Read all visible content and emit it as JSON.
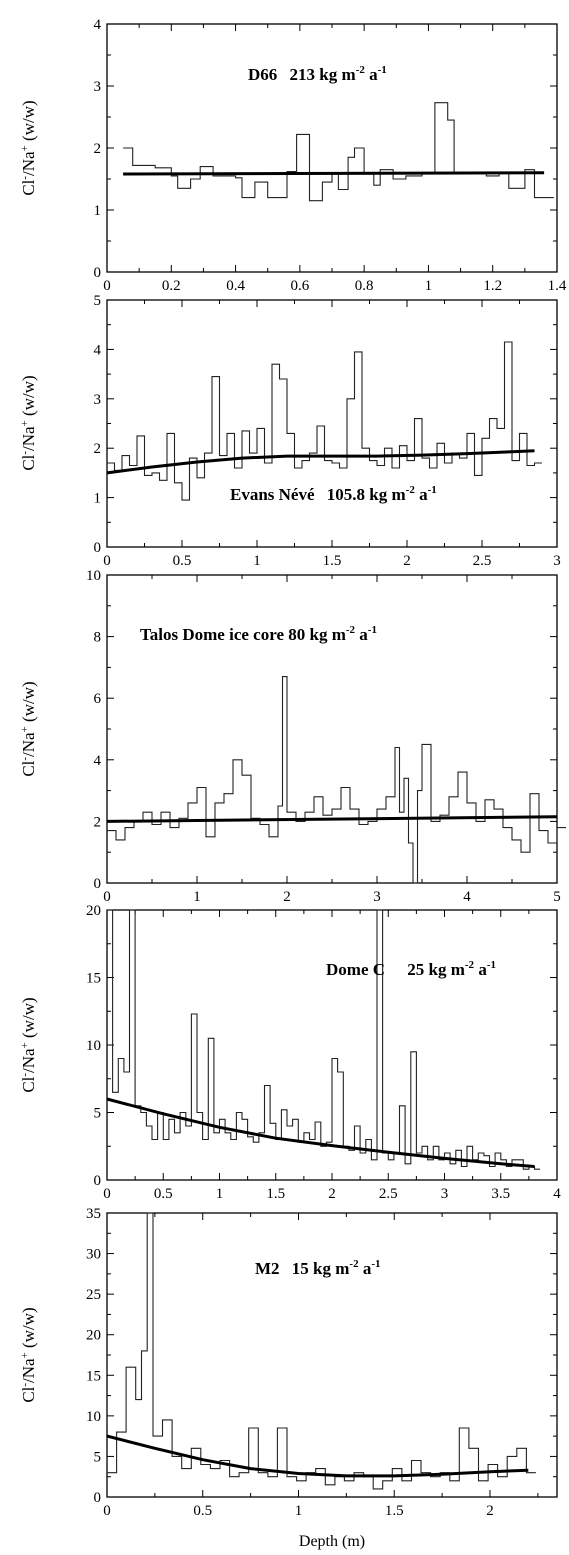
{
  "chart_data": [
    {
      "type": "line",
      "title": "D66",
      "rate": "213",
      "ylabel_parts": [
        "Cl",
        "-",
        "/Na",
        "+",
        " (w/w)"
      ],
      "xlim": [
        0,
        1.4
      ],
      "ylim": [
        0,
        4
      ],
      "xticks": [
        0,
        0.2,
        0.4,
        0.6,
        0.8,
        1,
        1.2,
        1.4
      ],
      "xtick_labels": [
        "0",
        "0.2",
        "0.4",
        "0.6",
        "0.8",
        "1",
        "1.2",
        "1.4"
      ],
      "yticks": [
        0,
        1,
        2,
        3,
        4
      ],
      "ytick_labels": [
        "0",
        "1",
        "2",
        "3",
        "4"
      ],
      "series": [
        {
          "kind": "step",
          "x": [
            0.05,
            0.08,
            0.15,
            0.2,
            0.22,
            0.26,
            0.29,
            0.33,
            0.4,
            0.42,
            0.46,
            0.5,
            0.56,
            0.59,
            0.63,
            0.67,
            0.7,
            0.72,
            0.75,
            0.77,
            0.8,
            0.83,
            0.85,
            0.89,
            0.93,
            0.98,
            1.02,
            1.06,
            1.08,
            1.12,
            1.18,
            1.22,
            1.25,
            1.3,
            1.33,
            1.36
          ],
          "y": [
            2.0,
            1.72,
            1.68,
            1.55,
            1.35,
            1.5,
            1.7,
            1.55,
            1.52,
            1.2,
            1.45,
            1.2,
            1.62,
            2.22,
            1.15,
            1.45,
            1.6,
            1.33,
            1.85,
            2.0,
            1.6,
            1.4,
            1.65,
            1.5,
            1.55,
            1.6,
            2.73,
            2.45,
            1.58,
            1.6,
            1.55,
            1.6,
            1.35,
            1.65,
            1.2,
            1.2
          ]
        },
        {
          "kind": "fit",
          "x": [
            0.05,
            1.36
          ],
          "y": [
            1.58,
            1.6
          ]
        }
      ]
    },
    {
      "type": "line",
      "title": "Evans Névé",
      "rate": "105.8",
      "ylabel_parts": [
        "Cl",
        "-",
        "/Na",
        "+",
        " (w/w)"
      ],
      "xlim": [
        0,
        3
      ],
      "ylim": [
        0,
        5
      ],
      "xticks": [
        0,
        0.5,
        1,
        1.5,
        2,
        2.5,
        3
      ],
      "xtick_labels": [
        "0",
        "0.5",
        "1",
        "1.5",
        "2",
        "2.5",
        "3"
      ],
      "yticks": [
        0,
        1,
        2,
        3,
        4,
        5
      ],
      "ytick_labels": [
        "0",
        "1",
        "2",
        "3",
        "4",
        "5"
      ],
      "series": [
        {
          "kind": "step",
          "x": [
            0.0,
            0.05,
            0.1,
            0.15,
            0.2,
            0.25,
            0.3,
            0.35,
            0.4,
            0.45,
            0.5,
            0.55,
            0.6,
            0.65,
            0.7,
            0.75,
            0.8,
            0.85,
            0.9,
            0.95,
            1.0,
            1.05,
            1.1,
            1.15,
            1.2,
            1.25,
            1.3,
            1.35,
            1.4,
            1.45,
            1.5,
            1.55,
            1.6,
            1.65,
            1.7,
            1.75,
            1.8,
            1.85,
            1.9,
            1.95,
            2.0,
            2.05,
            2.1,
            2.15,
            2.2,
            2.25,
            2.3,
            2.35,
            2.4,
            2.45,
            2.5,
            2.55,
            2.6,
            2.65,
            2.7,
            2.75,
            2.8,
            2.85
          ],
          "y": [
            1.7,
            1.55,
            1.85,
            1.65,
            2.25,
            1.45,
            1.5,
            1.35,
            2.3,
            1.3,
            0.95,
            1.8,
            1.4,
            1.9,
            3.45,
            1.85,
            2.3,
            1.6,
            2.35,
            1.9,
            2.4,
            1.7,
            3.7,
            3.4,
            2.3,
            1.6,
            1.75,
            1.9,
            2.45,
            1.75,
            1.7,
            1.6,
            3.0,
            3.95,
            2.0,
            1.75,
            1.65,
            2.0,
            1.6,
            2.05,
            1.75,
            2.6,
            1.8,
            1.6,
            2.1,
            1.7,
            1.9,
            1.8,
            2.3,
            1.45,
            2.2,
            2.6,
            2.4,
            4.15,
            1.75,
            2.3,
            1.65,
            1.7
          ]
        },
        {
          "kind": "fit",
          "x": [
            0,
            0.3,
            0.6,
            0.9,
            1.2,
            1.5,
            1.8,
            2.1,
            2.4,
            2.7,
            2.85
          ],
          "y": [
            1.5,
            1.62,
            1.72,
            1.8,
            1.84,
            1.84,
            1.84,
            1.86,
            1.89,
            1.93,
            1.95
          ]
        }
      ]
    },
    {
      "type": "line",
      "title": "Talos Dome ice core 80",
      "rate": "80",
      "ylabel_parts": [
        "Cl",
        "-",
        "/Na",
        "+",
        " (w/w)"
      ],
      "xlim": [
        0,
        5
      ],
      "ylim": [
        0,
        10
      ],
      "xticks": [
        0,
        1,
        2,
        3,
        4,
        5
      ],
      "xtick_labels": [
        "0",
        "1",
        "2",
        "3",
        "4",
        "5"
      ],
      "yticks": [
        0,
        2,
        4,
        6,
        8,
        10
      ],
      "ytick_labels": [
        "0",
        "2",
        "4",
        "6",
        "8",
        "10"
      ],
      "series": [
        {
          "kind": "step",
          "x": [
            0.0,
            0.1,
            0.2,
            0.3,
            0.4,
            0.5,
            0.6,
            0.7,
            0.8,
            0.9,
            1.0,
            1.1,
            1.2,
            1.3,
            1.4,
            1.5,
            1.6,
            1.7,
            1.8,
            1.9,
            1.95,
            2.0,
            2.1,
            2.2,
            2.3,
            2.4,
            2.5,
            2.6,
            2.7,
            2.8,
            2.9,
            3.0,
            3.1,
            3.2,
            3.25,
            3.3,
            3.35,
            3.4,
            3.45,
            3.5,
            3.6,
            3.7,
            3.8,
            3.9,
            4.0,
            4.1,
            4.2,
            4.3,
            4.4,
            4.5,
            4.6,
            4.7,
            4.8,
            4.9,
            5.0
          ],
          "y": [
            1.7,
            1.4,
            1.8,
            2.0,
            2.3,
            1.9,
            2.3,
            1.8,
            2.1,
            2.6,
            3.1,
            1.5,
            2.6,
            2.9,
            4.0,
            3.5,
            2.1,
            1.9,
            1.5,
            2.5,
            6.7,
            2.3,
            2.0,
            2.3,
            2.8,
            2.2,
            2.4,
            3.1,
            2.4,
            1.9,
            2.0,
            2.4,
            2.8,
            4.4,
            2.3,
            3.4,
            1.3,
            0.0,
            3.0,
            4.5,
            2.0,
            2.2,
            2.8,
            3.6,
            2.6,
            2.0,
            2.7,
            2.4,
            1.8,
            1.4,
            1.0,
            2.9,
            1.7,
            1.3,
            1.8
          ]
        },
        {
          "kind": "fit",
          "x": [
            0,
            5
          ],
          "y": [
            2.0,
            2.15
          ]
        }
      ]
    },
    {
      "type": "line",
      "title": "Dome C",
      "rate": "25",
      "ylabel_parts": [
        "Cl",
        "-",
        "/Na",
        "+",
        " (w/w)"
      ],
      "xlim": [
        0,
        4
      ],
      "ylim": [
        0,
        20
      ],
      "xticks": [
        0,
        0.5,
        1,
        1.5,
        2,
        2.5,
        3,
        3.5,
        4
      ],
      "xtick_labels": [
        "0",
        "0.5",
        "1",
        "1.5",
        "2",
        "2.5",
        "3",
        "3.5",
        "4"
      ],
      "yticks": [
        0,
        5,
        10,
        15,
        20
      ],
      "ytick_labels": [
        "0",
        "5",
        "10",
        "15",
        "20"
      ],
      "series": [
        {
          "kind": "step",
          "x": [
            0.0,
            0.05,
            0.1,
            0.15,
            0.2,
            0.25,
            0.3,
            0.35,
            0.4,
            0.45,
            0.5,
            0.55,
            0.6,
            0.65,
            0.7,
            0.75,
            0.8,
            0.85,
            0.9,
            0.95,
            1.0,
            1.05,
            1.1,
            1.15,
            1.2,
            1.25,
            1.3,
            1.35,
            1.4,
            1.45,
            1.5,
            1.55,
            1.6,
            1.65,
            1.7,
            1.75,
            1.8,
            1.85,
            1.9,
            1.95,
            2.0,
            2.05,
            2.1,
            2.15,
            2.2,
            2.25,
            2.3,
            2.35,
            2.4,
            2.45,
            2.5,
            2.55,
            2.6,
            2.65,
            2.7,
            2.75,
            2.8,
            2.85,
            2.9,
            2.95,
            3.0,
            3.05,
            3.1,
            3.15,
            3.2,
            3.25,
            3.3,
            3.35,
            3.4,
            3.45,
            3.5,
            3.55,
            3.6,
            3.65,
            3.7,
            3.75,
            3.8
          ],
          "y": [
            20,
            6.5,
            9,
            8,
            20,
            5.5,
            5,
            4,
            3,
            5,
            3,
            4.5,
            3.5,
            5,
            4,
            12.3,
            5,
            3,
            10.5,
            3.5,
            4.5,
            3.5,
            3,
            5,
            4.5,
            3.2,
            2.8,
            3.5,
            7,
            4.2,
            3,
            5.2,
            4,
            4.5,
            2.8,
            3.5,
            3,
            4.3,
            2.5,
            2.8,
            9,
            8,
            2.5,
            2.2,
            4,
            2,
            3,
            1.5,
            20,
            2,
            1.5,
            2,
            5.5,
            1.2,
            9.5,
            2,
            2.5,
            1.5,
            2.5,
            1.5,
            2,
            1.2,
            2.2,
            1,
            2.5,
            1.5,
            2,
            1.8,
            1,
            2,
            1.5,
            1,
            1.5,
            1.5,
            0.8,
            1,
            0.8
          ]
        },
        {
          "kind": "fit",
          "x": [
            0,
            0.5,
            1,
            1.5,
            2,
            2.5,
            3,
            3.5,
            3.8
          ],
          "y": [
            6.0,
            4.9,
            3.9,
            3.1,
            2.55,
            2.05,
            1.6,
            1.2,
            1.0
          ]
        }
      ]
    },
    {
      "type": "line",
      "title": "M2",
      "rate": "15",
      "ylabel_parts": [
        "Cl",
        "-",
        "/Na",
        "+",
        " (w/w)"
      ],
      "xlabel": "Depth (m)",
      "xlim": [
        0,
        2.35
      ],
      "ylim": [
        0,
        35
      ],
      "xticks": [
        0,
        0.5,
        1,
        1.5,
        2
      ],
      "xtick_labels": [
        "0",
        "0.5",
        "1",
        "1.5",
        "2"
      ],
      "yticks": [
        0,
        5,
        10,
        15,
        20,
        25,
        30,
        35
      ],
      "ytick_labels": [
        "0",
        "5",
        "10",
        "15",
        "20",
        "25",
        "30",
        "35"
      ],
      "series": [
        {
          "kind": "step",
          "x": [
            0.0,
            0.05,
            0.1,
            0.15,
            0.18,
            0.21,
            0.24,
            0.29,
            0.34,
            0.39,
            0.44,
            0.49,
            0.54,
            0.59,
            0.64,
            0.69,
            0.74,
            0.79,
            0.84,
            0.89,
            0.94,
            0.99,
            1.04,
            1.09,
            1.14,
            1.19,
            1.24,
            1.29,
            1.34,
            1.39,
            1.44,
            1.49,
            1.54,
            1.59,
            1.64,
            1.69,
            1.74,
            1.79,
            1.84,
            1.89,
            1.94,
            1.99,
            2.04,
            2.09,
            2.14,
            2.19
          ],
          "y": [
            3,
            8,
            16,
            12,
            18,
            35,
            7.5,
            9.5,
            5,
            3.5,
            6,
            4,
            3.5,
            4.5,
            2.5,
            3,
            8.5,
            3,
            2.5,
            8.5,
            2.5,
            2,
            3,
            3.5,
            1.5,
            2.5,
            2,
            3,
            2.5,
            1,
            2,
            3.5,
            2,
            4.5,
            3,
            2.5,
            3,
            2,
            8.5,
            6,
            2,
            4,
            2.5,
            5,
            6,
            3
          ]
        },
        {
          "kind": "fit",
          "x": [
            0,
            0.25,
            0.5,
            0.75,
            1,
            1.25,
            1.5,
            1.75,
            2,
            2.2
          ],
          "y": [
            7.5,
            6.0,
            4.6,
            3.5,
            2.9,
            2.6,
            2.6,
            2.8,
            3.1,
            3.3
          ]
        }
      ]
    }
  ]
}
